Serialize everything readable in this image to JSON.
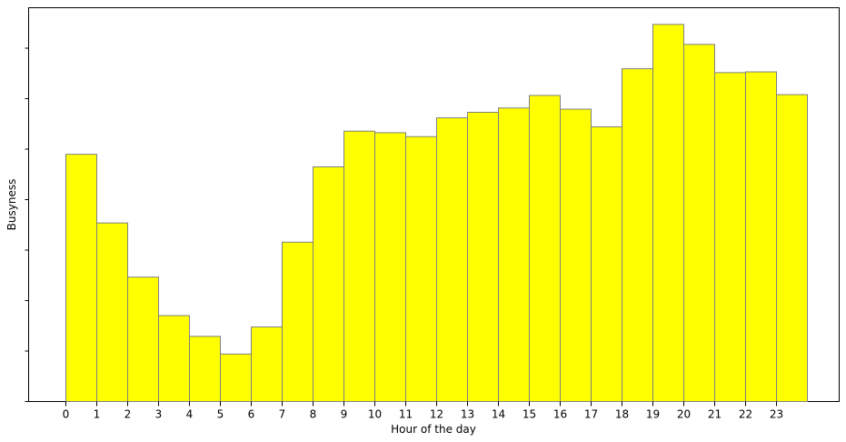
{
  "chart_data": {
    "type": "bar",
    "title": "",
    "xlabel": "Hour of the day",
    "ylabel": "Busyness",
    "categories": [
      "0",
      "1",
      "2",
      "3",
      "4",
      "5",
      "6",
      "7",
      "8",
      "9",
      "10",
      "11",
      "12",
      "13",
      "14",
      "15",
      "16",
      "17",
      "18",
      "19",
      "20",
      "21",
      "22",
      "23"
    ],
    "values": [
      0.63,
      0.455,
      0.317,
      0.219,
      0.166,
      0.121,
      0.19,
      0.406,
      0.598,
      0.689,
      0.685,
      0.675,
      0.723,
      0.737,
      0.748,
      0.78,
      0.745,
      0.7,
      0.848,
      0.961,
      0.91,
      0.838,
      0.84,
      0.782
    ],
    "ylim": [
      0,
      1.0
    ],
    "y_ticks_unlabeled": 8,
    "bar_color": "#ffff00",
    "bar_edge_color": "#808080",
    "grid": false
  }
}
